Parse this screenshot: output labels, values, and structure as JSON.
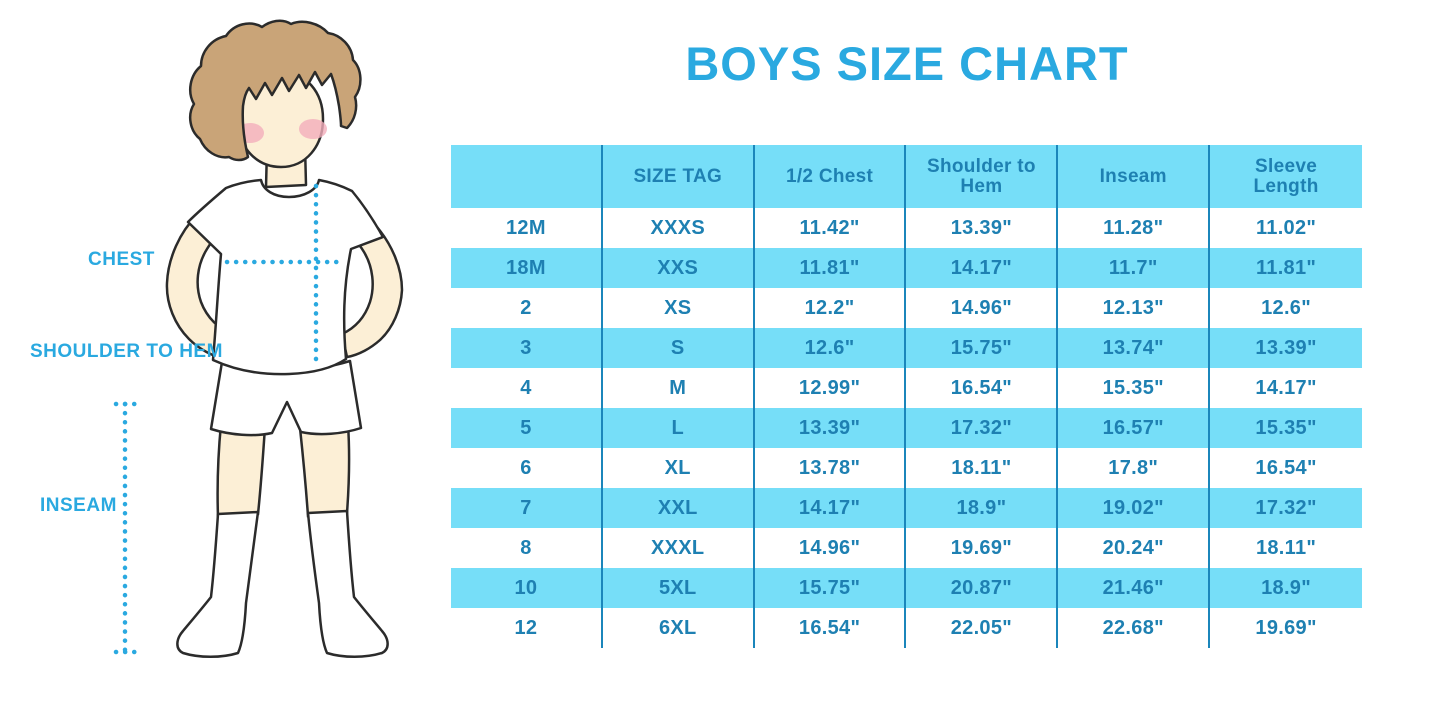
{
  "title": "BOYS SIZE CHART",
  "figure": {
    "description": "Outline illustration of a boy in a white t-shirt, shorts and knee socks with dotted measurement guides",
    "labels": {
      "chest": "CHEST",
      "shoulder_to_hem": "SHOULDER TO HEM",
      "inseam": "INSEAM"
    }
  },
  "table": {
    "columns": [
      "",
      "SIZE TAG",
      "1/2 Chest",
      "Shoulder to Hem",
      "Inseam",
      "Sleeve Length"
    ],
    "rows": [
      [
        "12M",
        "XXXS",
        "11.42\"",
        "13.39\"",
        "11.28\"",
        "11.02\""
      ],
      [
        "18M",
        "XXS",
        "11.81\"",
        "14.17\"",
        "11.7\"",
        "11.81\""
      ],
      [
        "2",
        "XS",
        "12.2\"",
        "14.96\"",
        "12.13\"",
        "12.6\""
      ],
      [
        "3",
        "S",
        "12.6\"",
        "15.75\"",
        "13.74\"",
        "13.39\""
      ],
      [
        "4",
        "M",
        "12.99\"",
        "16.54\"",
        "15.35\"",
        "14.17\""
      ],
      [
        "5",
        "L",
        "13.39\"",
        "17.32\"",
        "16.57\"",
        "15.35\""
      ],
      [
        "6",
        "XL",
        "13.78\"",
        "18.11\"",
        "17.8\"",
        "16.54\""
      ],
      [
        "7",
        "XXL",
        "14.17\"",
        "18.9\"",
        "19.02\"",
        "17.32\""
      ],
      [
        "8",
        "XXXL",
        "14.96\"",
        "19.69\"",
        "20.24\"",
        "18.11\""
      ],
      [
        "10",
        "5XL",
        "15.75\"",
        "20.87\"",
        "21.46\"",
        "18.9\""
      ],
      [
        "12",
        "6XL",
        "16.54\"",
        "22.05\"",
        "22.68\"",
        "19.69\""
      ]
    ]
  },
  "colors": {
    "accent_blue": "#2AA9E0",
    "table_text_blue": "#1E80B2",
    "stripe_cyan": "#76DEF8",
    "separator_blue": "#1B86BB",
    "skin": "#FCEFD6",
    "hair": "#C9A478",
    "blush": "#F2AEBC",
    "outline": "#2B2B2B"
  }
}
